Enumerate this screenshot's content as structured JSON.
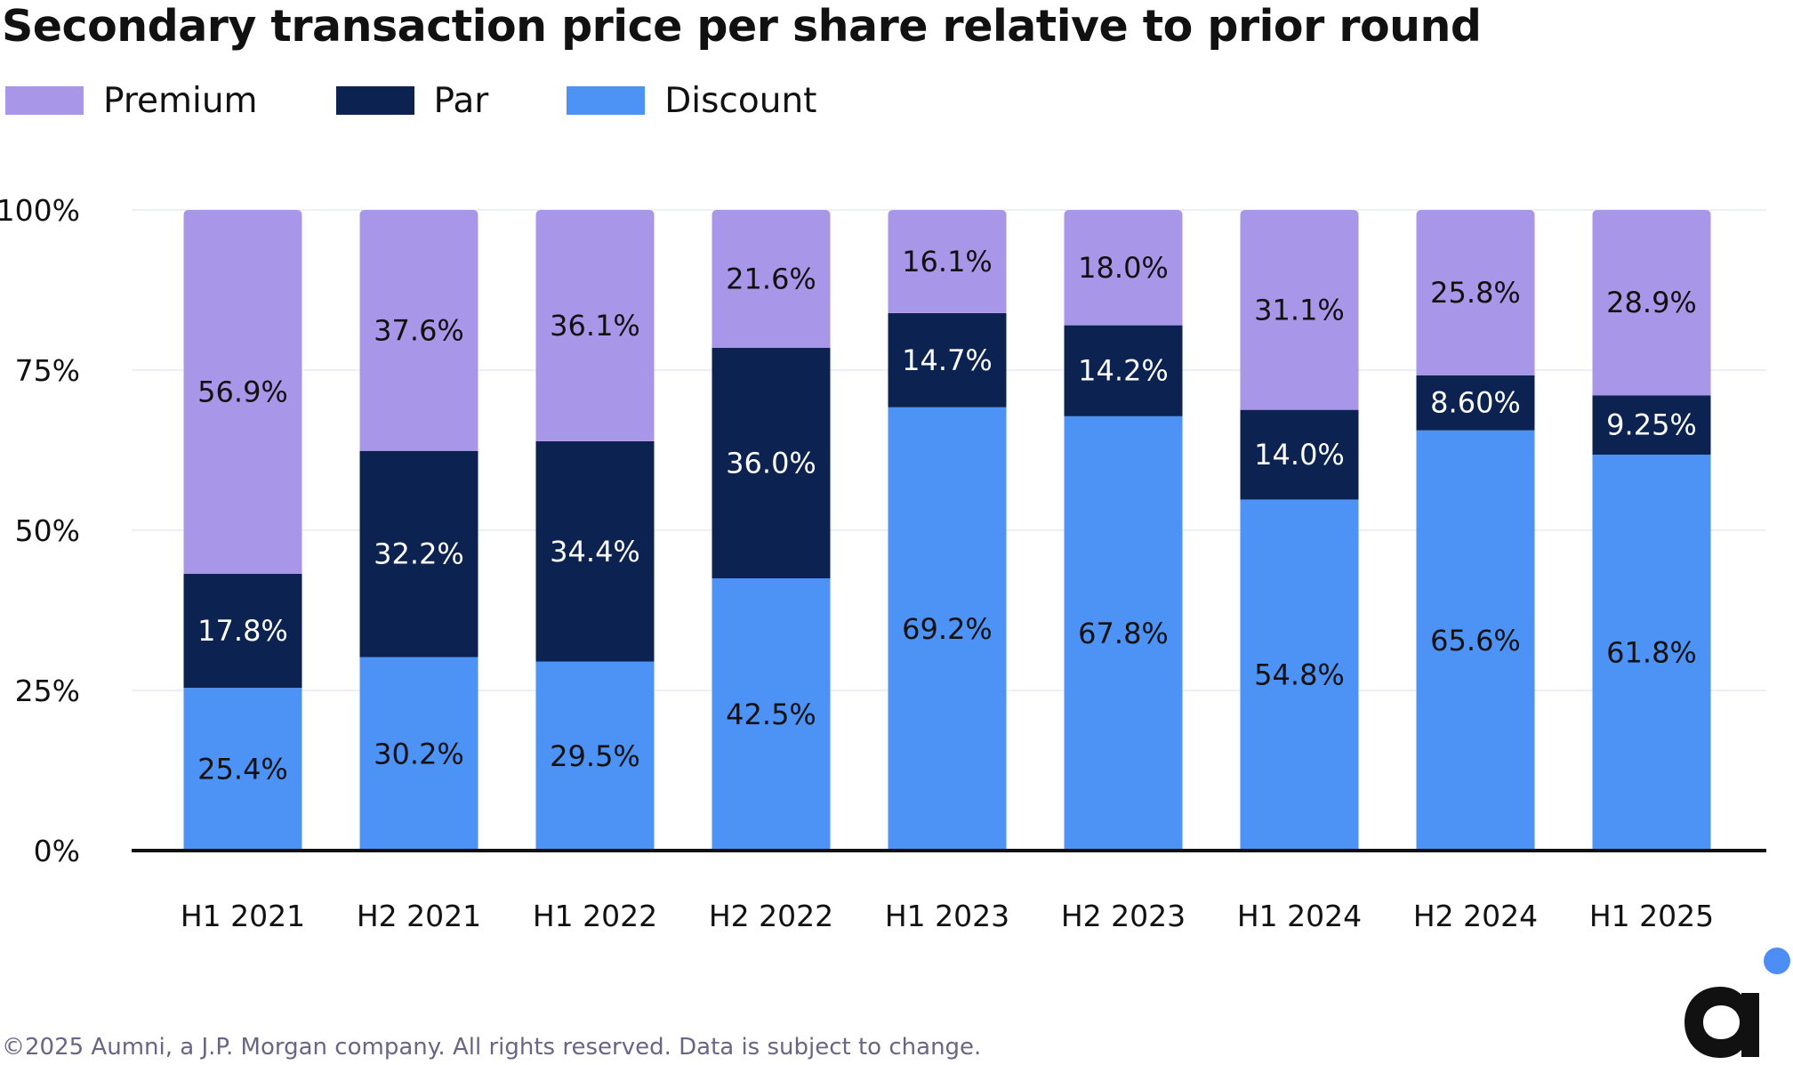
{
  "title": "Secondary transaction price per share relative to prior round",
  "footer": "©2025 Aumni, a J.P. Morgan company. All rights reserved. Data is subject to change.",
  "colors": {
    "premium": "#a897e8",
    "par": "#0c2250",
    "discount": "#4c93f5",
    "axis": "#111111",
    "grid": "#e6eaf2",
    "logo_dot": "#4c8ef5",
    "logo_mark": "#111111"
  },
  "chart_data": {
    "type": "bar",
    "stacked": true,
    "categories": [
      "H1 2021",
      "H2 2021",
      "H1 2022",
      "H2 2022",
      "H1 2023",
      "H2 2023",
      "H1 2024",
      "H2 2024",
      "H1 2025"
    ],
    "series": [
      {
        "name": "Discount",
        "color": "#4c93f5",
        "values": [
          25.4,
          30.2,
          29.5,
          42.5,
          69.2,
          67.8,
          54.8,
          65.6,
          61.8
        ],
        "labels": [
          "25.4%",
          "30.2%",
          "29.5%",
          "42.5%",
          "69.2%",
          "67.8%",
          "54.8%",
          "65.6%",
          "61.8%"
        ],
        "label_color": "#111111"
      },
      {
        "name": "Par",
        "color": "#0c2250",
        "values": [
          17.8,
          32.2,
          34.4,
          36.0,
          14.7,
          14.2,
          14.0,
          8.6,
          9.25
        ],
        "labels": [
          "17.8%",
          "32.2%",
          "34.4%",
          "36.0%",
          "14.7%",
          "14.2%",
          "14.0%",
          "8.60%",
          "9.25%"
        ],
        "label_color": "#ffffff"
      },
      {
        "name": "Premium",
        "color": "#a897e8",
        "values": [
          56.9,
          37.6,
          36.1,
          21.6,
          16.1,
          18.0,
          31.1,
          25.8,
          28.9
        ],
        "labels": [
          "56.9%",
          "37.6%",
          "36.1%",
          "21.6%",
          "16.1%",
          "18.0%",
          "31.1%",
          "25.8%",
          "28.9%"
        ],
        "label_color": "#111111"
      }
    ],
    "legend": [
      {
        "name": "Premium",
        "color": "#a897e8"
      },
      {
        "name": "Par",
        "color": "#0c2250"
      },
      {
        "name": "Discount",
        "color": "#4c93f5"
      }
    ],
    "legend_position": "top-left",
    "ylim": [
      0,
      100
    ],
    "yticks": [
      0,
      25,
      50,
      75,
      100
    ],
    "ytick_labels": [
      "0%",
      "25%",
      "50%",
      "75%",
      "100%"
    ],
    "grid": true,
    "xlabel": "",
    "ylabel": ""
  }
}
